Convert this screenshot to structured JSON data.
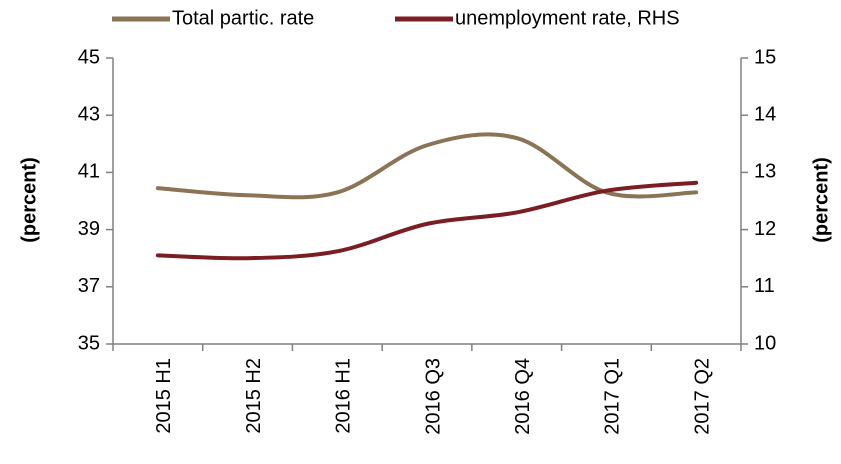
{
  "chart_data": {
    "type": "line",
    "categories": [
      "2015 H1",
      "2015 H2",
      "2016 H1",
      "2016 Q3",
      "2016 Q4",
      "2017 Q1",
      "2017 Q2"
    ],
    "series": [
      {
        "name": "Total partic. rate",
        "axis": "left",
        "color": "#8B7355",
        "values": [
          40.45,
          40.2,
          40.3,
          41.95,
          42.2,
          40.3,
          40.3
        ]
      },
      {
        "name": "unemployment rate, RHS",
        "axis": "right",
        "color": "#7B1E24",
        "values": [
          11.55,
          11.5,
          11.62,
          12.1,
          12.3,
          12.68,
          12.82
        ]
      }
    ],
    "ylabel_left": "(percent)",
    "ylabel_right": "(percent)",
    "ylim_left": [
      35,
      45
    ],
    "yticks_left": [
      "35",
      "37",
      "39",
      "41",
      "43",
      "45"
    ],
    "ylim_right": [
      10,
      15
    ],
    "yticks_right": [
      "10",
      "11",
      "12",
      "13",
      "14",
      "15"
    ],
    "legend": "top",
    "grid": false
  }
}
